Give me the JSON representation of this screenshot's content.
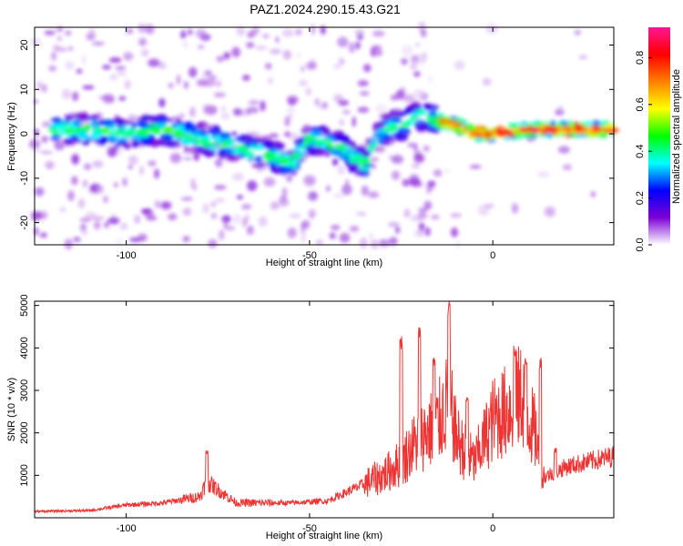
{
  "figure": {
    "title": "PAZ1.2024.290.15.43.G21"
  },
  "chart_data": [
    {
      "type": "heatmap",
      "xlabel": "Height of straight line (km)",
      "ylabel": "Frequency (Hz)",
      "xlim": [
        -125,
        33
      ],
      "ylim": [
        -25,
        24
      ],
      "xticks": [
        -100,
        -50,
        0
      ],
      "yticks": [
        -20,
        -10,
        0,
        10,
        20
      ],
      "colorbar": {
        "label": "Normalized spectral amplitude",
        "range": [
          0,
          0.93
        ],
        "ticks": [
          "0.0",
          "0.2",
          "0.4",
          "0.6",
          "0.8"
        ],
        "tick_values": [
          0.0,
          0.2,
          0.4,
          0.6,
          0.8
        ],
        "colormap": [
          "#ffffff",
          "#7b00d4",
          "#0000ff",
          "#00ffff",
          "#00ff00",
          "#ffff00",
          "#ff8000",
          "#ff0000",
          "#ff1493"
        ]
      },
      "ridge": {
        "x": [
          -120,
          -110,
          -100,
          -90,
          -80,
          -70,
          -60,
          -55,
          -50,
          -45,
          -40,
          -35,
          -30,
          -25,
          -20,
          -15,
          -10,
          -5,
          0,
          10,
          20,
          33
        ],
        "y": [
          1,
          1,
          0,
          1,
          -1,
          -3,
          -5,
          -7,
          -1,
          -2,
          -4,
          -7,
          1,
          2,
          4,
          3,
          2,
          0,
          0,
          1,
          1,
          1
        ]
      }
    },
    {
      "type": "line",
      "xlabel": "Height of straight line (km)",
      "ylabel": "SNR (10 * v/v)",
      "xlim": [
        -125,
        33
      ],
      "ylim": [
        0,
        5100
      ],
      "xticks": [
        -100,
        -50,
        0
      ],
      "yticks": [
        1000,
        2000,
        3000,
        4000,
        5000
      ],
      "color": "#ee3333",
      "envelope": {
        "x": [
          -125,
          -110,
          -100,
          -90,
          -80,
          -78,
          -70,
          -60,
          -55,
          -45,
          -40,
          -35,
          -30,
          -25,
          -20,
          -15,
          -12,
          -10,
          -8,
          -5,
          0,
          5,
          8,
          10,
          12,
          13,
          15,
          20,
          25,
          33
        ],
        "y": [
          150,
          170,
          300,
          350,
          500,
          850,
          350,
          350,
          350,
          400,
          600,
          800,
          1000,
          1300,
          1900,
          2200,
          2800,
          1900,
          1600,
          1300,
          2300,
          2600,
          2900,
          2300,
          1900,
          900,
          1000,
          1200,
          1300,
          1450
        ]
      },
      "spikes": [
        {
          "x": -78,
          "y": 1600
        },
        {
          "x": -25,
          "y": 4300
        },
        {
          "x": -20,
          "y": 4550
        },
        {
          "x": -16,
          "y": 3800
        },
        {
          "x": -12,
          "y": 5100
        },
        {
          "x": -7,
          "y": 2900
        },
        {
          "x": 6,
          "y": 4100
        },
        {
          "x": 9,
          "y": 3800
        },
        {
          "x": 13,
          "y": 3800
        },
        {
          "x": 17,
          "y": 1650
        }
      ]
    }
  ]
}
